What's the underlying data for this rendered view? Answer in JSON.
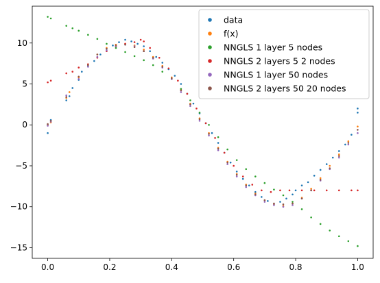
{
  "chart_data": {
    "type": "scatter",
    "title": "",
    "xlabel": "",
    "ylabel": "",
    "xlim": [
      -0.05,
      1.05
    ],
    "ylim": [
      -16.3,
      14.5
    ],
    "xticks": [
      0.0,
      0.2,
      0.4,
      0.6,
      0.8,
      1.0
    ],
    "xtick_labels": [
      "0.0",
      "0.2",
      "0.4",
      "0.6",
      "0.8",
      "1.0"
    ],
    "yticks": [
      -15,
      -10,
      -5,
      0,
      5,
      10
    ],
    "ytick_labels": [
      "−15",
      "−10",
      "−5",
      "0",
      "5",
      "10"
    ],
    "grid": false,
    "legend_position": "top-right",
    "series": [
      {
        "name": "data",
        "color": "#1f77b4",
        "points": [
          [
            0.0,
            -1.0
          ],
          [
            0.0,
            0.0
          ],
          [
            0.01,
            0.6
          ],
          [
            0.06,
            3.0
          ],
          [
            0.07,
            3.5
          ],
          [
            0.08,
            4.5
          ],
          [
            0.1,
            5.5
          ],
          [
            0.11,
            6.5
          ],
          [
            0.13,
            7.2
          ],
          [
            0.15,
            7.8
          ],
          [
            0.17,
            8.6
          ],
          [
            0.19,
            9.3
          ],
          [
            0.21,
            9.7
          ],
          [
            0.23,
            10.1
          ],
          [
            0.25,
            10.4
          ],
          [
            0.27,
            10.2
          ],
          [
            0.29,
            9.9
          ],
          [
            0.31,
            9.6
          ],
          [
            0.33,
            9.0
          ],
          [
            0.35,
            8.3
          ],
          [
            0.37,
            7.6
          ],
          [
            0.39,
            6.8
          ],
          [
            0.41,
            6.0
          ],
          [
            0.43,
            5.0
          ],
          [
            0.45,
            3.8
          ],
          [
            0.47,
            2.6
          ],
          [
            0.49,
            1.4
          ],
          [
            0.51,
            0.2
          ],
          [
            0.53,
            -1.0
          ],
          [
            0.55,
            -2.2
          ],
          [
            0.57,
            -3.4
          ],
          [
            0.59,
            -4.6
          ],
          [
            0.61,
            -5.7
          ],
          [
            0.63,
            -6.6
          ],
          [
            0.65,
            -7.4
          ],
          [
            0.67,
            -8.2
          ],
          [
            0.69,
            -8.8
          ],
          [
            0.71,
            -9.3
          ],
          [
            0.73,
            -9.7
          ],
          [
            0.75,
            -9.4
          ],
          [
            0.77,
            -9.0
          ],
          [
            0.79,
            -8.5
          ],
          [
            0.8,
            -8.0
          ],
          [
            0.82,
            -7.4
          ],
          [
            0.84,
            -7.0
          ],
          [
            0.86,
            -6.2
          ],
          [
            0.88,
            -5.5
          ],
          [
            0.9,
            -4.8
          ],
          [
            0.92,
            -4.0
          ],
          [
            0.94,
            -3.2
          ],
          [
            0.96,
            -2.4
          ],
          [
            0.98,
            -1.2
          ],
          [
            1.0,
            1.5
          ],
          [
            1.0,
            2.0
          ]
        ]
      },
      {
        "name": "f(x)",
        "color": "#ff7f0e",
        "points": [
          [
            0.0,
            0.0
          ],
          [
            0.01,
            0.3
          ],
          [
            0.06,
            3.3
          ],
          [
            0.07,
            4.0
          ],
          [
            0.1,
            5.8
          ],
          [
            0.13,
            7.4
          ],
          [
            0.16,
            8.6
          ],
          [
            0.19,
            9.4
          ],
          [
            0.22,
            9.8
          ],
          [
            0.25,
            9.9
          ],
          [
            0.28,
            9.7
          ],
          [
            0.31,
            9.2
          ],
          [
            0.34,
            8.3
          ],
          [
            0.37,
            7.2
          ],
          [
            0.4,
            5.8
          ],
          [
            0.43,
            4.3
          ],
          [
            0.46,
            2.6
          ],
          [
            0.49,
            0.8
          ],
          [
            0.52,
            -1.0
          ],
          [
            0.55,
            -2.8
          ],
          [
            0.58,
            -4.5
          ],
          [
            0.61,
            -6.0
          ],
          [
            0.64,
            -7.3
          ],
          [
            0.67,
            -8.4
          ],
          [
            0.7,
            -9.2
          ],
          [
            0.73,
            -9.7
          ],
          [
            0.76,
            -9.9
          ],
          [
            0.79,
            -9.6
          ],
          [
            0.82,
            -8.9
          ],
          [
            0.85,
            -7.8
          ],
          [
            0.88,
            -6.5
          ],
          [
            0.91,
            -5.0
          ],
          [
            0.94,
            -3.6
          ],
          [
            0.97,
            -2.0
          ],
          [
            1.0,
            -0.2
          ]
        ]
      },
      {
        "name": "NNGLS 1 layer 5 nodes",
        "color": "#2ca02c",
        "points": [
          [
            0.0,
            13.2
          ],
          [
            0.01,
            13.0
          ],
          [
            0.06,
            12.1
          ],
          [
            0.08,
            11.8
          ],
          [
            0.1,
            11.5
          ],
          [
            0.13,
            11.0
          ],
          [
            0.16,
            10.5
          ],
          [
            0.19,
            9.9
          ],
          [
            0.22,
            9.4
          ],
          [
            0.25,
            8.9
          ],
          [
            0.28,
            8.4
          ],
          [
            0.31,
            7.9
          ],
          [
            0.34,
            7.3
          ],
          [
            0.37,
            6.5
          ],
          [
            0.4,
            5.6
          ],
          [
            0.43,
            4.4
          ],
          [
            0.46,
            3.0
          ],
          [
            0.49,
            1.5
          ],
          [
            0.52,
            0.0
          ],
          [
            0.55,
            -1.5
          ],
          [
            0.58,
            -3.0
          ],
          [
            0.61,
            -4.3
          ],
          [
            0.64,
            -5.4
          ],
          [
            0.67,
            -6.3
          ],
          [
            0.7,
            -7.1
          ],
          [
            0.73,
            -7.9
          ],
          [
            0.76,
            -8.6
          ],
          [
            0.79,
            -9.4
          ],
          [
            0.82,
            -10.3
          ],
          [
            0.85,
            -11.3
          ],
          [
            0.88,
            -12.1
          ],
          [
            0.91,
            -12.9
          ],
          [
            0.94,
            -13.6
          ],
          [
            0.97,
            -14.2
          ],
          [
            1.0,
            -14.8
          ]
        ]
      },
      {
        "name": "NNGLS 2 layers 5 2 nodes",
        "color": "#d62728",
        "points": [
          [
            0.0,
            5.2
          ],
          [
            0.01,
            5.4
          ],
          [
            0.06,
            6.3
          ],
          [
            0.08,
            6.5
          ],
          [
            0.1,
            7.0
          ],
          [
            0.13,
            7.4
          ],
          [
            0.16,
            8.2
          ],
          [
            0.19,
            9.0
          ],
          [
            0.22,
            9.6
          ],
          [
            0.25,
            9.9
          ],
          [
            0.28,
            10.1
          ],
          [
            0.3,
            10.4
          ],
          [
            0.31,
            10.2
          ],
          [
            0.33,
            9.4
          ],
          [
            0.36,
            8.2
          ],
          [
            0.39,
            6.9
          ],
          [
            0.42,
            5.4
          ],
          [
            0.45,
            3.8
          ],
          [
            0.48,
            2.0
          ],
          [
            0.51,
            0.2
          ],
          [
            0.54,
            -1.6
          ],
          [
            0.57,
            -3.4
          ],
          [
            0.6,
            -5.0
          ],
          [
            0.63,
            -6.3
          ],
          [
            0.66,
            -7.3
          ],
          [
            0.69,
            -8.0
          ],
          [
            0.72,
            -8.2
          ],
          [
            0.75,
            -8.0
          ],
          [
            0.78,
            -8.0
          ],
          [
            0.82,
            -8.0
          ],
          [
            0.86,
            -8.0
          ],
          [
            0.9,
            -8.0
          ],
          [
            0.94,
            -8.0
          ],
          [
            0.98,
            -8.0
          ],
          [
            1.0,
            -8.0
          ]
        ]
      },
      {
        "name": "NNGLS 1 layer 50 nodes",
        "color": "#9467bd",
        "points": [
          [
            0.0,
            -0.1
          ],
          [
            0.01,
            0.4
          ],
          [
            0.06,
            3.6
          ],
          [
            0.1,
            5.6
          ],
          [
            0.13,
            7.1
          ],
          [
            0.16,
            8.3
          ],
          [
            0.19,
            9.1
          ],
          [
            0.22,
            9.6
          ],
          [
            0.25,
            9.8
          ],
          [
            0.28,
            9.6
          ],
          [
            0.31,
            9.0
          ],
          [
            0.34,
            8.1
          ],
          [
            0.37,
            7.0
          ],
          [
            0.4,
            5.6
          ],
          [
            0.43,
            4.0
          ],
          [
            0.46,
            2.3
          ],
          [
            0.49,
            0.5
          ],
          [
            0.52,
            -1.3
          ],
          [
            0.55,
            -3.1
          ],
          [
            0.58,
            -4.8
          ],
          [
            0.61,
            -6.3
          ],
          [
            0.64,
            -7.6
          ],
          [
            0.67,
            -8.6
          ],
          [
            0.7,
            -9.4
          ],
          [
            0.73,
            -9.8
          ],
          [
            0.76,
            -10.0
          ],
          [
            0.79,
            -9.8
          ],
          [
            0.82,
            -9.0
          ],
          [
            0.85,
            -8.0
          ],
          [
            0.88,
            -6.8
          ],
          [
            0.91,
            -5.4
          ],
          [
            0.94,
            -4.0
          ],
          [
            0.97,
            -2.4
          ],
          [
            1.0,
            -1.0
          ]
        ]
      },
      {
        "name": "NNGLS 2 layers 50 20 nodes",
        "color": "#8c564b",
        "points": [
          [
            0.0,
            0.1
          ],
          [
            0.01,
            0.5
          ],
          [
            0.06,
            3.4
          ],
          [
            0.1,
            5.9
          ],
          [
            0.13,
            7.3
          ],
          [
            0.16,
            8.6
          ],
          [
            0.19,
            9.3
          ],
          [
            0.22,
            9.7
          ],
          [
            0.25,
            9.8
          ],
          [
            0.28,
            9.5
          ],
          [
            0.31,
            9.0
          ],
          [
            0.34,
            8.2
          ],
          [
            0.37,
            7.1
          ],
          [
            0.4,
            5.7
          ],
          [
            0.43,
            4.2
          ],
          [
            0.46,
            2.5
          ],
          [
            0.49,
            0.7
          ],
          [
            0.52,
            -1.1
          ],
          [
            0.55,
            -2.9
          ],
          [
            0.58,
            -4.6
          ],
          [
            0.61,
            -6.1
          ],
          [
            0.64,
            -7.4
          ],
          [
            0.67,
            -8.5
          ],
          [
            0.7,
            -9.2
          ],
          [
            0.73,
            -9.6
          ],
          [
            0.76,
            -9.7
          ],
          [
            0.79,
            -9.6
          ],
          [
            0.82,
            -9.0
          ],
          [
            0.85,
            -8.0
          ],
          [
            0.88,
            -6.7
          ],
          [
            0.91,
            -5.3
          ],
          [
            0.94,
            -3.8
          ],
          [
            0.97,
            -2.2
          ],
          [
            1.0,
            -0.6
          ]
        ]
      }
    ]
  }
}
